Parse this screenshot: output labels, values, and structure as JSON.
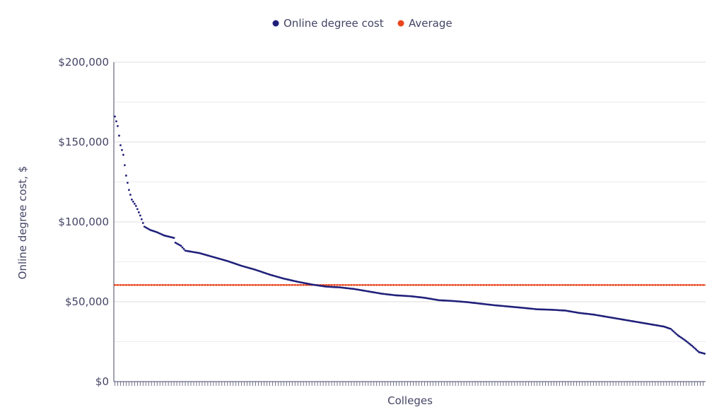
{
  "chart_data": {
    "type": "scatter",
    "title": "",
    "xlabel": "Colleges",
    "ylabel": "Online degree cost, $",
    "ylim": [
      0,
      200000
    ],
    "yticks": [
      "$0",
      "$50,000",
      "$100,000",
      "$150,000",
      "$200,000"
    ],
    "ytick_values": [
      0,
      50000,
      100000,
      150000,
      200000
    ],
    "grid": true,
    "legend_position": "top-center",
    "series": [
      {
        "name": "Online degree cost",
        "color": "#1f1f7a",
        "kind": "markers",
        "anchors": [
          [
            0,
            166000
          ],
          [
            2,
            160000
          ],
          [
            4,
            148000
          ],
          [
            6,
            142000
          ],
          [
            8,
            129000
          ],
          [
            10,
            120000
          ],
          [
            12,
            114000
          ],
          [
            15,
            110000
          ],
          [
            18,
            104000
          ],
          [
            21,
            97000
          ],
          [
            25,
            95000
          ],
          [
            30,
            93500
          ],
          [
            35,
            91500
          ],
          [
            42,
            90000
          ],
          [
            43,
            87000
          ],
          [
            47,
            85000
          ],
          [
            50,
            82000
          ],
          [
            60,
            80500
          ],
          [
            70,
            78000
          ],
          [
            80,
            75500
          ],
          [
            90,
            72500
          ],
          [
            100,
            70000
          ],
          [
            110,
            67000
          ],
          [
            120,
            64500
          ],
          [
            130,
            62500
          ],
          [
            140,
            60800
          ],
          [
            150,
            59500
          ],
          [
            160,
            59000
          ],
          [
            170,
            58000
          ],
          [
            180,
            56500
          ],
          [
            190,
            55000
          ],
          [
            200,
            54000
          ],
          [
            210,
            53500
          ],
          [
            220,
            52500
          ],
          [
            230,
            51000
          ],
          [
            240,
            50500
          ],
          [
            250,
            49800
          ],
          [
            260,
            48800
          ],
          [
            270,
            47800
          ],
          [
            280,
            47000
          ],
          [
            290,
            46200
          ],
          [
            300,
            45300
          ],
          [
            310,
            45000
          ],
          [
            320,
            44500
          ],
          [
            330,
            43000
          ],
          [
            340,
            42000
          ],
          [
            350,
            40500
          ],
          [
            360,
            39000
          ],
          [
            370,
            37500
          ],
          [
            380,
            36000
          ],
          [
            390,
            34500
          ],
          [
            395,
            33000
          ],
          [
            400,
            29000
          ],
          [
            405,
            26000
          ],
          [
            410,
            22500
          ],
          [
            415,
            18500
          ],
          [
            419,
            17500
          ]
        ]
      },
      {
        "name": "Average",
        "color": "#e8451c",
        "kind": "line",
        "value": 60500
      }
    ],
    "n_points": 420
  }
}
